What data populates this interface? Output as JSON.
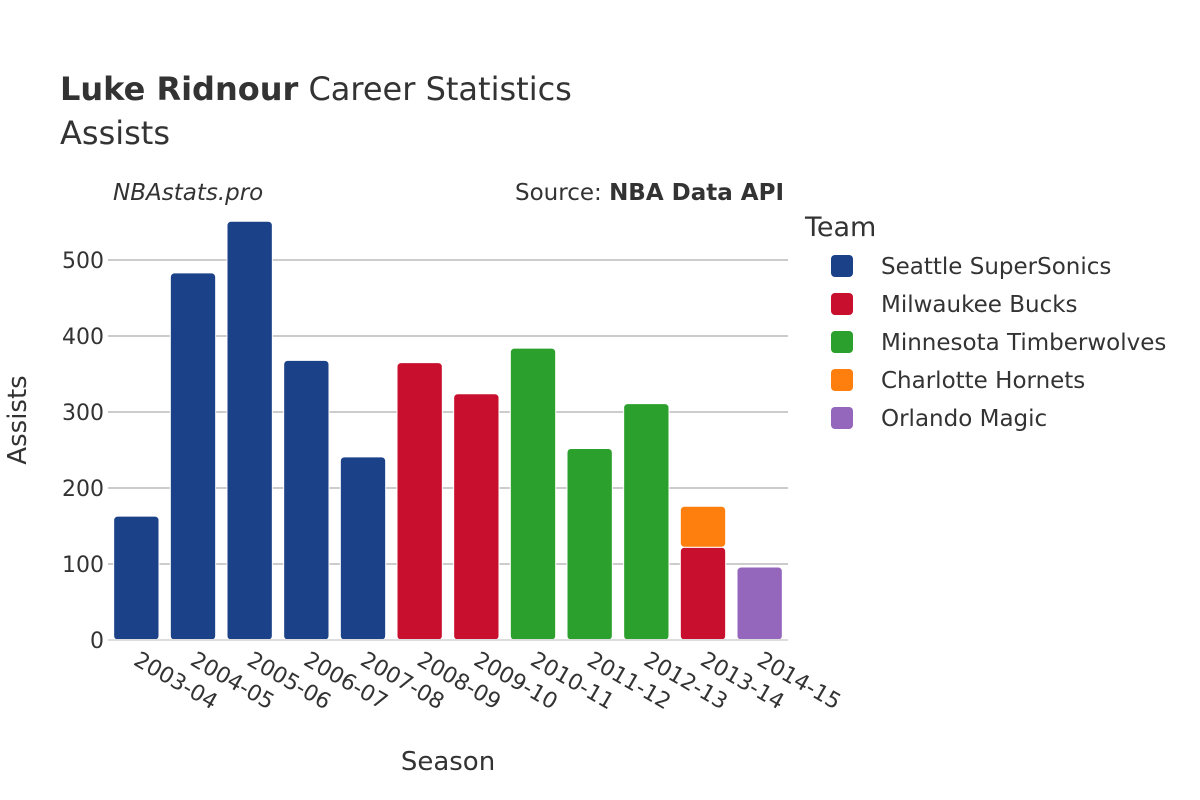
{
  "chart_data": {
    "type": "bar",
    "title_bold": "Luke Ridnour",
    "title_rest": " Career Statistics",
    "subtitle": "Assists",
    "watermark": "NBAstats.pro",
    "source_prefix": "Source: ",
    "source_name": "NBA Data API",
    "xlabel": "Season",
    "ylabel": "Assists",
    "ylim": [
      0,
      550
    ],
    "yticks": [
      0,
      100,
      200,
      300,
      400,
      500
    ],
    "grid": true,
    "categories": [
      "2003-04",
      "2004-05",
      "2005-06",
      "2006-07",
      "2007-08",
      "2008-09",
      "2009-10",
      "2010-11",
      "2011-12",
      "2012-13",
      "2013-14",
      "2014-15"
    ],
    "legend": {
      "title": "Team",
      "position": "right"
    },
    "series": [
      {
        "name": "Seattle SuperSonics",
        "color": "#1b4289",
        "values": [
          163,
          483,
          551,
          368,
          241,
          0,
          0,
          0,
          0,
          0,
          0,
          0
        ]
      },
      {
        "name": "Milwaukee Bucks",
        "color": "#c8102e",
        "values": [
          0,
          0,
          0,
          0,
          0,
          365,
          324,
          0,
          0,
          0,
          122,
          0
        ]
      },
      {
        "name": "Minnesota Timberwolves",
        "color": "#2ca02c",
        "values": [
          0,
          0,
          0,
          0,
          0,
          0,
          0,
          384,
          252,
          311,
          0,
          0
        ]
      },
      {
        "name": "Charlotte Hornets",
        "color": "#ff7f0e",
        "values": [
          0,
          0,
          0,
          0,
          0,
          0,
          0,
          0,
          0,
          0,
          54,
          0
        ]
      },
      {
        "name": "Orlando Magic",
        "color": "#9467bd",
        "values": [
          0,
          0,
          0,
          0,
          0,
          0,
          0,
          0,
          0,
          0,
          0,
          96
        ]
      }
    ]
  }
}
